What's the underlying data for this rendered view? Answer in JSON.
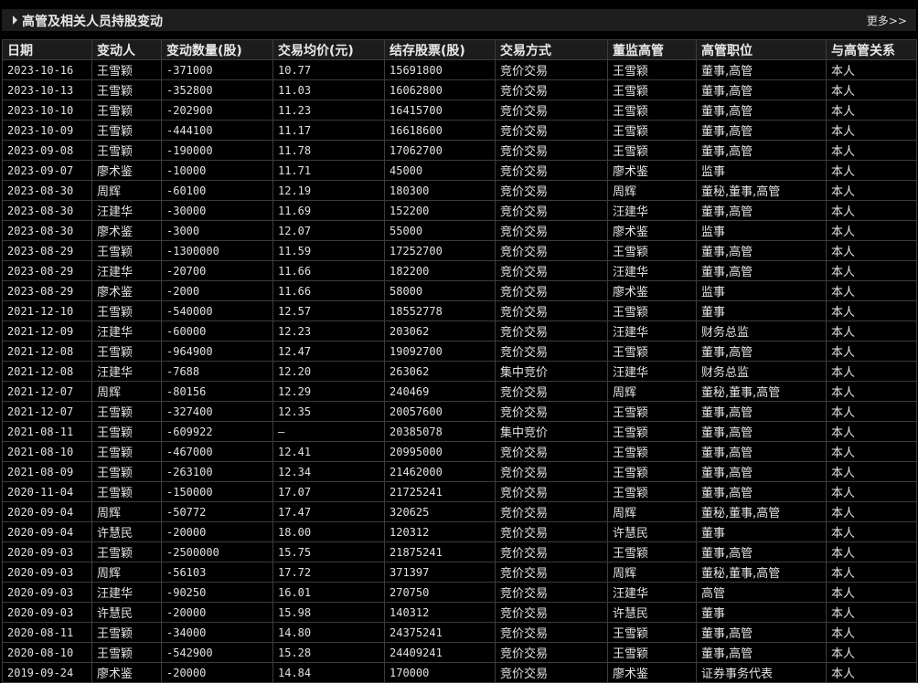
{
  "section": {
    "title": "高管及相关人员持股变动",
    "more_label": "更多>>"
  },
  "table": {
    "columns": [
      "日期",
      "变动人",
      "变动数量(股)",
      "交易均价(元)",
      "结存股票(股)",
      "交易方式",
      "董监高管",
      "高管职位",
      "与高管关系"
    ],
    "rows": [
      [
        "2023-10-16",
        "王雪颖",
        "-371000",
        "10.77",
        "15691800",
        "竞价交易",
        "王雪颖",
        "董事,高管",
        "本人"
      ],
      [
        "2023-10-13",
        "王雪颖",
        "-352800",
        "11.03",
        "16062800",
        "竞价交易",
        "王雪颖",
        "董事,高管",
        "本人"
      ],
      [
        "2023-10-10",
        "王雪颖",
        "-202900",
        "11.23",
        "16415700",
        "竞价交易",
        "王雪颖",
        "董事,高管",
        "本人"
      ],
      [
        "2023-10-09",
        "王雪颖",
        "-444100",
        "11.17",
        "16618600",
        "竞价交易",
        "王雪颖",
        "董事,高管",
        "本人"
      ],
      [
        "2023-09-08",
        "王雪颖",
        "-190000",
        "11.78",
        "17062700",
        "竞价交易",
        "王雪颖",
        "董事,高管",
        "本人"
      ],
      [
        "2023-09-07",
        "廖术鉴",
        "-10000",
        "11.71",
        "45000",
        "竞价交易",
        "廖术鉴",
        "监事",
        "本人"
      ],
      [
        "2023-08-30",
        "周辉",
        "-60100",
        "12.19",
        "180300",
        "竞价交易",
        "周辉",
        "董秘,董事,高管",
        "本人"
      ],
      [
        "2023-08-30",
        "汪建华",
        "-30000",
        "11.69",
        "152200",
        "竞价交易",
        "汪建华",
        "董事,高管",
        "本人"
      ],
      [
        "2023-08-30",
        "廖术鉴",
        "-3000",
        "12.07",
        "55000",
        "竞价交易",
        "廖术鉴",
        "监事",
        "本人"
      ],
      [
        "2023-08-29",
        "王雪颖",
        "-1300000",
        "11.59",
        "17252700",
        "竞价交易",
        "王雪颖",
        "董事,高管",
        "本人"
      ],
      [
        "2023-08-29",
        "汪建华",
        "-20700",
        "11.66",
        "182200",
        "竞价交易",
        "汪建华",
        "董事,高管",
        "本人"
      ],
      [
        "2023-08-29",
        "廖术鉴",
        "-2000",
        "11.66",
        "58000",
        "竞价交易",
        "廖术鉴",
        "监事",
        "本人"
      ],
      [
        "2021-12-10",
        "王雪颖",
        "-540000",
        "12.57",
        "18552778",
        "竞价交易",
        "王雪颖",
        "董事",
        "本人"
      ],
      [
        "2021-12-09",
        "汪建华",
        "-60000",
        "12.23",
        "203062",
        "竞价交易",
        "汪建华",
        "财务总监",
        "本人"
      ],
      [
        "2021-12-08",
        "王雪颖",
        "-964900",
        "12.47",
        "19092700",
        "竞价交易",
        "王雪颖",
        "董事,高管",
        "本人"
      ],
      [
        "2021-12-08",
        "汪建华",
        "-7688",
        "12.20",
        "263062",
        "集中竞价",
        "汪建华",
        "财务总监",
        "本人"
      ],
      [
        "2021-12-07",
        "周辉",
        "-80156",
        "12.29",
        "240469",
        "竞价交易",
        "周辉",
        "董秘,董事,高管",
        "本人"
      ],
      [
        "2021-12-07",
        "王雪颖",
        "-327400",
        "12.35",
        "20057600",
        "竞价交易",
        "王雪颖",
        "董事,高管",
        "本人"
      ],
      [
        "2021-08-11",
        "王雪颖",
        "-609922",
        "—",
        "20385078",
        "集中竞价",
        "王雪颖",
        "董事,高管",
        "本人"
      ],
      [
        "2021-08-10",
        "王雪颖",
        "-467000",
        "12.41",
        "20995000",
        "竞价交易",
        "王雪颖",
        "董事,高管",
        "本人"
      ],
      [
        "2021-08-09",
        "王雪颖",
        "-263100",
        "12.34",
        "21462000",
        "竞价交易",
        "王雪颖",
        "董事,高管",
        "本人"
      ],
      [
        "2020-11-04",
        "王雪颖",
        "-150000",
        "17.07",
        "21725241",
        "竞价交易",
        "王雪颖",
        "董事,高管",
        "本人"
      ],
      [
        "2020-09-04",
        "周辉",
        "-50772",
        "17.47",
        "320625",
        "竞价交易",
        "周辉",
        "董秘,董事,高管",
        "本人"
      ],
      [
        "2020-09-04",
        "许慧民",
        "-20000",
        "18.00",
        "120312",
        "竞价交易",
        "许慧民",
        "董事",
        "本人"
      ],
      [
        "2020-09-03",
        "王雪颖",
        "-2500000",
        "15.75",
        "21875241",
        "竞价交易",
        "王雪颖",
        "董事,高管",
        "本人"
      ],
      [
        "2020-09-03",
        "周辉",
        "-56103",
        "17.72",
        "371397",
        "竞价交易",
        "周辉",
        "董秘,董事,高管",
        "本人"
      ],
      [
        "2020-09-03",
        "汪建华",
        "-90250",
        "16.01",
        "270750",
        "竞价交易",
        "汪建华",
        "高管",
        "本人"
      ],
      [
        "2020-09-03",
        "许慧民",
        "-20000",
        "15.98",
        "140312",
        "竞价交易",
        "许慧民",
        "董事",
        "本人"
      ],
      [
        "2020-08-11",
        "王雪颖",
        "-34000",
        "14.80",
        "24375241",
        "竞价交易",
        "王雪颖",
        "董事,高管",
        "本人"
      ],
      [
        "2020-08-10",
        "王雪颖",
        "-542900",
        "15.28",
        "24409241",
        "竞价交易",
        "王雪颖",
        "董事,高管",
        "本人"
      ],
      [
        "2019-09-24",
        "廖术鉴",
        "-20000",
        "14.84",
        "170000",
        "竞价交易",
        "廖术鉴",
        "证券事务代表",
        "本人"
      ]
    ]
  }
}
